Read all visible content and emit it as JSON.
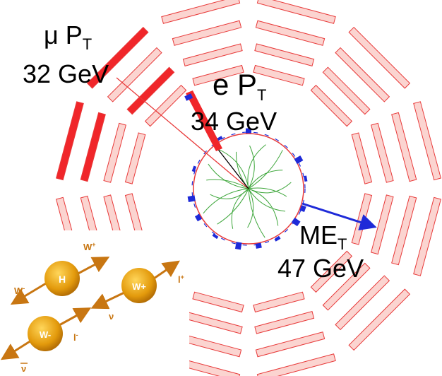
{
  "event_display": {
    "muon_label": {
      "particle": "μ P",
      "subscript": "T",
      "value": "32 GeV"
    },
    "electron_label": {
      "particle": "e P",
      "subscript": "T",
      "value": "34 GeV"
    },
    "met_label": {
      "particle": "ME",
      "subscript": "T",
      "value": "47 GeV"
    },
    "colors": {
      "module_fill": "#fbd4d0",
      "module_stroke": "#e83a3a",
      "hit_module": "#f0262a",
      "tracks": "#3da63a",
      "met_arrow": "#1e2ad8",
      "calorimeter_hits": "#1e2ad8"
    }
  },
  "feynman": {
    "particles": {
      "h": "H",
      "wplus_mid": "W+",
      "wminus_bottom": "W-"
    },
    "labels": {
      "wplus_arrow": {
        "base": "W",
        "sup": "+"
      },
      "wminus_arrow": {
        "base": "W",
        "sup": "-"
      },
      "lplus": {
        "base": "l",
        "sup": "+"
      },
      "nu_mid": {
        "base": "ν",
        "sup": ""
      },
      "lminus": {
        "base": "l",
        "sup": "-"
      },
      "nubar": {
        "base": "ν",
        "sup": ""
      }
    },
    "colors": {
      "ball": "#e39a0c",
      "arrow": "#c87612"
    }
  }
}
